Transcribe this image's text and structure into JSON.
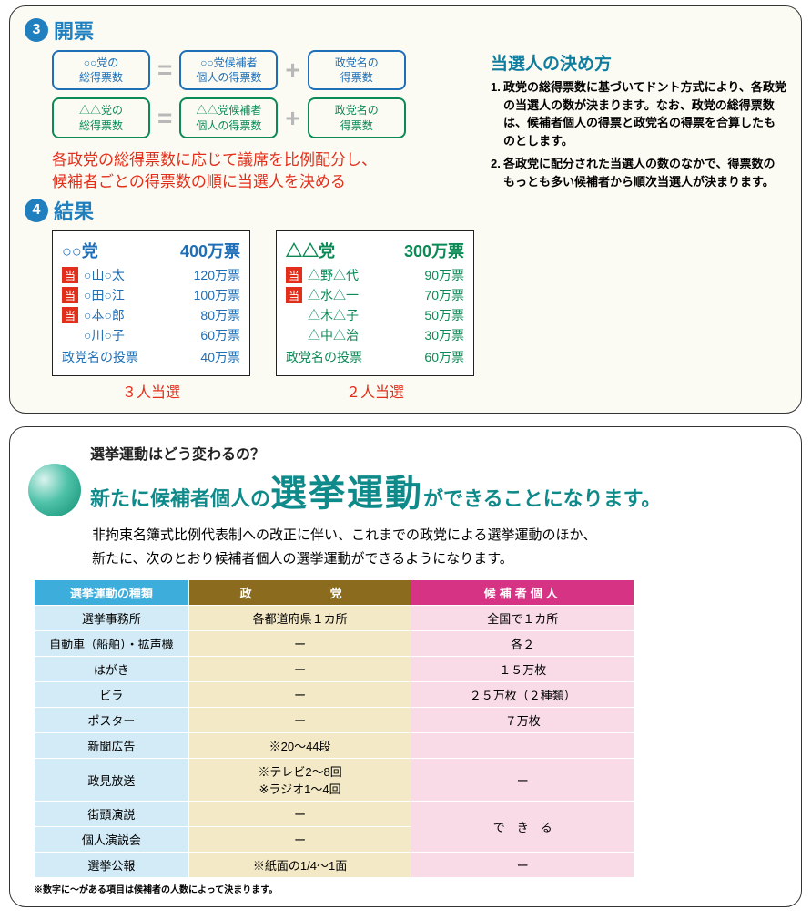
{
  "section3": {
    "number": "3",
    "title": "開票",
    "diagram": {
      "row1": {
        "total": "○○党の\n総得票数",
        "equals": "=",
        "indiv": "○○党候補者\n個人の得票数",
        "plus": "+",
        "party": "政党名の\n得票数"
      },
      "row2": {
        "total": "△△党の\n総得票数",
        "equals": "=",
        "indiv": "△△党候補者\n個人の得票数",
        "plus": "+",
        "party": "政党名の\n得票数"
      }
    },
    "red_explain": "各政党の総得票数に応じて議席を比例配分し、\n候補者ごとの得票数の順に当選人を決める",
    "howto": {
      "title": "当選人の決め方",
      "items": [
        {
          "n": "1.",
          "text": "政党の総得票数に基づいてドント方式により、各政党の当選人の数が決まります。なお、政党の総得票数は、候補者個人の得票と政党名の得票を合算したものとします。"
        },
        {
          "n": "2.",
          "text": "各政党に配分された当選人の数のなかで、得票数のもっとも多い候補者から順次当選人が決まります。"
        }
      ]
    }
  },
  "section4": {
    "number": "4",
    "title": "結果",
    "cards": [
      {
        "color": "blue",
        "party": "○○党",
        "total": "400万票",
        "candidates": [
          {
            "win": true,
            "name": "○山○太",
            "votes": "120万票"
          },
          {
            "win": true,
            "name": "○田○江",
            "votes": "100万票"
          },
          {
            "win": true,
            "name": "○本○郎",
            "votes": "80万票"
          },
          {
            "win": false,
            "name": "○川○子",
            "votes": "60万票"
          }
        ],
        "party_vote_label": "政党名の投票",
        "party_vote": "40万票",
        "caption": "３人当選"
      },
      {
        "color": "green",
        "party": "△△党",
        "total": "300万票",
        "candidates": [
          {
            "win": true,
            "name": "△野△代",
            "votes": "90万票"
          },
          {
            "win": true,
            "name": "△水△一",
            "votes": "70万票"
          },
          {
            "win": false,
            "name": "△木△子",
            "votes": "50万票"
          },
          {
            "win": false,
            "name": "△中△治",
            "votes": "30万票"
          }
        ],
        "party_vote_label": "政党名の投票",
        "party_vote": "60万票",
        "caption": "２人当選"
      }
    ],
    "win_badge": "当"
  },
  "panel2": {
    "small": "選挙運動はどう変わるの？",
    "big_pre": "新たに候補者個人の",
    "big_huge": "選挙運動",
    "big_post": "ができることになります。",
    "intro": "非拘束名簿式比例代表制への改正に伴い、これまでの政党による選挙運動のほか、\n新たに、次のとおり候補者個人の選挙運動ができるようになります。",
    "table": {
      "headers": {
        "type": "選挙運動の種類",
        "party": "政　　党",
        "cand": "候補者個人"
      },
      "rows": [
        {
          "type": "選挙事務所",
          "party": "各都道府県１カ所",
          "cand": "全国で１カ所"
        },
        {
          "type": "自動車（船舶）・拡声機",
          "party": "ー",
          "cand": "各２"
        },
        {
          "type": "はがき",
          "party": "ー",
          "cand": "１５万枚"
        },
        {
          "type": "ビラ",
          "party": "ー",
          "cand": "２５万枚（２種類）"
        },
        {
          "type": "ポスター",
          "party": "ー",
          "cand": "７万枚"
        },
        {
          "type": "新聞広告",
          "party": "※20～44段",
          "cand": ""
        },
        {
          "type": "政見放送",
          "party": "※テレビ2～8回\n※ラジオ1～4回",
          "cand": "ー"
        },
        {
          "type": "街頭演説",
          "party": "ー",
          "cand_rowspan": "で　き　る"
        },
        {
          "type": "個人演説会",
          "party": "ー",
          "cand": null
        },
        {
          "type": "選挙公報",
          "party": "※紙面の1/4～1面",
          "cand": "ー"
        }
      ]
    },
    "footnote": "※数字に～がある項目は候補者の人数によって決まります。"
  }
}
